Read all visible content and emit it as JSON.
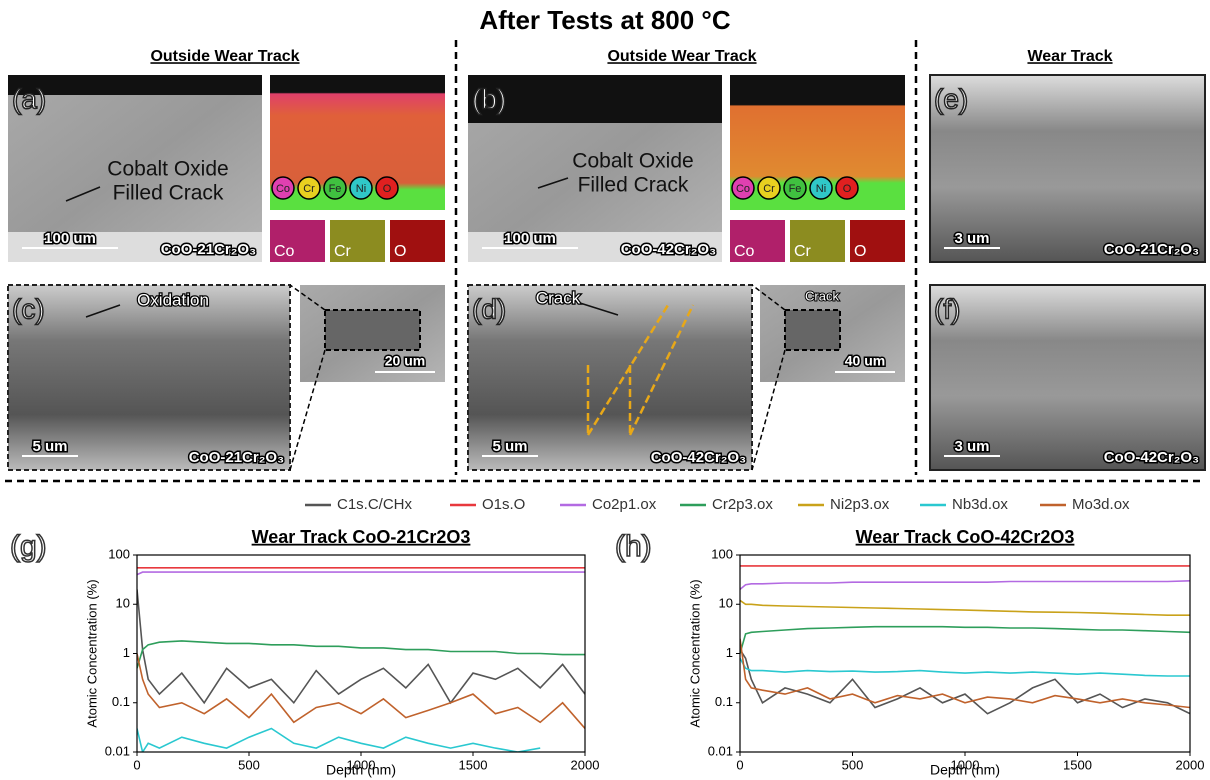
{
  "header": {
    "title": "After Tests at 800 °C",
    "sections": [
      "Outside Wear Track",
      "Outside Wear Track",
      "Wear Track"
    ]
  },
  "panels": [
    {
      "label": "(a)",
      "annotation": [
        "Cobalt Oxide",
        "Filled Crack"
      ],
      "scale_bar": "100 um",
      "sample": "CoO-21Cr₂O₃",
      "map_legend": [
        "Co",
        "Cr",
        "Fe",
        "Ni",
        "O"
      ],
      "maps": [
        "Co",
        "Cr",
        "O"
      ]
    },
    {
      "label": "(b)",
      "annotation": [
        "Cobalt Oxide",
        "Filled Crack"
      ],
      "scale_bar": "100 um",
      "sample": "CoO-42Cr₂O₃",
      "map_legend": [
        "Co",
        "Cr",
        "Fe",
        "Ni",
        "O"
      ],
      "maps": [
        "Co",
        "Cr",
        "O"
      ]
    },
    {
      "label": "(c)",
      "annotation": [
        "Oxidation"
      ],
      "scale_bar": "5 um",
      "inset_scale_bar": "20 um",
      "sample": "CoO-21Cr₂O₃"
    },
    {
      "label": "(d)",
      "annotation": [
        "Crack"
      ],
      "inset_annotation": "Crack",
      "scale_bar": "5 um",
      "inset_scale_bar": "40 um",
      "sample": "CoO-42Cr₂O₃"
    },
    {
      "label": "(e)",
      "scale_bar": "3 um",
      "sample": "CoO-21Cr₂O₃"
    },
    {
      "label": "(f)",
      "scale_bar": "3 um",
      "sample": "CoO-42Cr₂O₃"
    }
  ],
  "chart_data": [
    {
      "type": "line",
      "panel_label": "(g)",
      "title": "Wear Track CoO-21Cr2O3",
      "x_label": "Depth (nm)",
      "y_label": "Atomic Concentration (%)",
      "log_y": true,
      "xlim": [
        0,
        2000
      ],
      "xticks": [
        0,
        500,
        1000,
        1500,
        2000
      ],
      "ylim": [
        0.01,
        100
      ],
      "yticks": [
        0.01,
        0.1,
        1,
        10,
        100
      ],
      "x": [
        0,
        25,
        50,
        100,
        200,
        300,
        400,
        500,
        600,
        700,
        800,
        900,
        1000,
        1100,
        1200,
        1300,
        1400,
        1500,
        1600,
        1700,
        1800,
        1900,
        2000
      ],
      "series": [
        {
          "color": "#555555",
          "values": [
            20,
            1.2,
            0.3,
            0.15,
            0.4,
            0.1,
            0.5,
            0.2,
            0.3,
            0.1,
            0.45,
            0.15,
            0.3,
            0.5,
            0.2,
            0.6,
            0.1,
            0.4,
            0.3,
            0.5,
            0.2,
            0.6,
            0.15
          ]
        },
        {
          "color": "#e8383d",
          "values": [
            55,
            55,
            55,
            55,
            55,
            55,
            55,
            55,
            55,
            55,
            55,
            55,
            55,
            55,
            55,
            55,
            55,
            55,
            55,
            55,
            55,
            55,
            55
          ]
        },
        {
          "color": "#b36ae2",
          "values": [
            40,
            45,
            45,
            45,
            45,
            45,
            45,
            45,
            45,
            45,
            45,
            45,
            45,
            45,
            45,
            45,
            45,
            45,
            45,
            45,
            45,
            45,
            45
          ]
        },
        {
          "color": "#2e9e5b",
          "values": [
            0.5,
            1.2,
            1.5,
            1.7,
            1.8,
            1.7,
            1.6,
            1.6,
            1.5,
            1.5,
            1.4,
            1.4,
            1.3,
            1.3,
            1.2,
            1.2,
            1.1,
            1.1,
            1.1,
            1.0,
            1.0,
            0.95,
            0.95
          ]
        },
        {
          "color": "#2ac8d0",
          "values": [
            0.03,
            0.01,
            0.015,
            0.012,
            0.02,
            0.015,
            0.012,
            0.02,
            0.03,
            0.015,
            0.012,
            0.02,
            0.015,
            0.012,
            0.02,
            0.015,
            0.012,
            0.015,
            0.012,
            0.01,
            0.012,
            null,
            null
          ]
        },
        {
          "color": "#c0622c",
          "values": [
            1,
            0.3,
            0.15,
            0.08,
            0.1,
            0.06,
            0.12,
            0.05,
            0.15,
            0.04,
            0.08,
            0.1,
            0.06,
            0.12,
            0.05,
            0.07,
            0.1,
            0.15,
            0.06,
            0.08,
            0.04,
            0.1,
            0.03
          ]
        }
      ]
    },
    {
      "type": "line",
      "panel_label": "(h)",
      "title": "Wear Track CoO-42Cr2O3",
      "x_label": "Depth (nm)",
      "y_label": "Atomic Concentration (%)",
      "log_y": true,
      "xlim": [
        0,
        2000
      ],
      "xticks": [
        0,
        500,
        1000,
        1500,
        2000
      ],
      "ylim": [
        0.01,
        100
      ],
      "yticks": [
        0.01,
        0.1,
        1,
        10,
        100
      ],
      "x": [
        0,
        25,
        50,
        100,
        200,
        300,
        400,
        500,
        600,
        700,
        800,
        900,
        1000,
        1100,
        1200,
        1300,
        1400,
        1500,
        1600,
        1700,
        1800,
        1900,
        2000
      ],
      "series": [
        {
          "name": "C1s.C/CHx",
          "color": "#555555",
          "values": [
            1.2,
            0.8,
            0.3,
            0.1,
            0.2,
            0.15,
            0.1,
            0.3,
            0.08,
            0.12,
            0.2,
            0.1,
            0.15,
            0.06,
            0.1,
            0.2,
            0.3,
            0.1,
            0.15,
            0.08,
            0.12,
            0.1,
            0.06
          ]
        },
        {
          "name": "O1s.O",
          "color": "#e8383d",
          "values": [
            60,
            60,
            60,
            60,
            60,
            60,
            60,
            60,
            60,
            60,
            60,
            60,
            60,
            60,
            60,
            60,
            60,
            60,
            60,
            60,
            60,
            60,
            60
          ]
        },
        {
          "name": "Co2p1.ox",
          "color": "#b36ae2",
          "values": [
            20,
            25,
            26,
            26,
            27,
            27,
            27,
            28,
            28,
            28,
            28,
            28,
            28,
            28,
            29,
            29,
            29,
            29,
            29,
            29,
            29,
            29,
            30
          ]
        },
        {
          "name": "Cr2p3.ox",
          "color": "#2e9e5b",
          "values": [
            1,
            2.5,
            2.7,
            2.8,
            3,
            3.2,
            3.3,
            3.4,
            3.5,
            3.5,
            3.5,
            3.5,
            3.4,
            3.4,
            3.3,
            3.3,
            3.2,
            3.1,
            3,
            3,
            2.9,
            2.8,
            2.7
          ]
        },
        {
          "name": "Ni2p3.ox",
          "color": "#c9a21a",
          "values": [
            12,
            10,
            10,
            9.5,
            9.2,
            9,
            8.8,
            8.6,
            8.4,
            8.2,
            8,
            7.8,
            7.6,
            7.4,
            7.2,
            7,
            6.9,
            6.8,
            6.6,
            6.4,
            6.2,
            6,
            6
          ]
        },
        {
          "name": "Nb3d.ox",
          "color": "#2ac8d0",
          "values": [
            0.8,
            0.5,
            0.45,
            0.45,
            0.42,
            0.45,
            0.43,
            0.44,
            0.42,
            0.43,
            0.45,
            0.42,
            0.4,
            0.42,
            0.4,
            0.42,
            0.4,
            0.38,
            0.4,
            0.38,
            0.36,
            0.35,
            0.35
          ]
        },
        {
          "name": "Mo3d.ox",
          "color": "#c0622c",
          "values": [
            2,
            0.3,
            0.2,
            0.18,
            0.15,
            0.2,
            0.12,
            0.15,
            0.1,
            0.14,
            0.12,
            0.15,
            0.1,
            0.13,
            0.12,
            0.1,
            0.14,
            0.12,
            0.1,
            0.12,
            0.1,
            0.09,
            0.08
          ]
        }
      ]
    }
  ]
}
